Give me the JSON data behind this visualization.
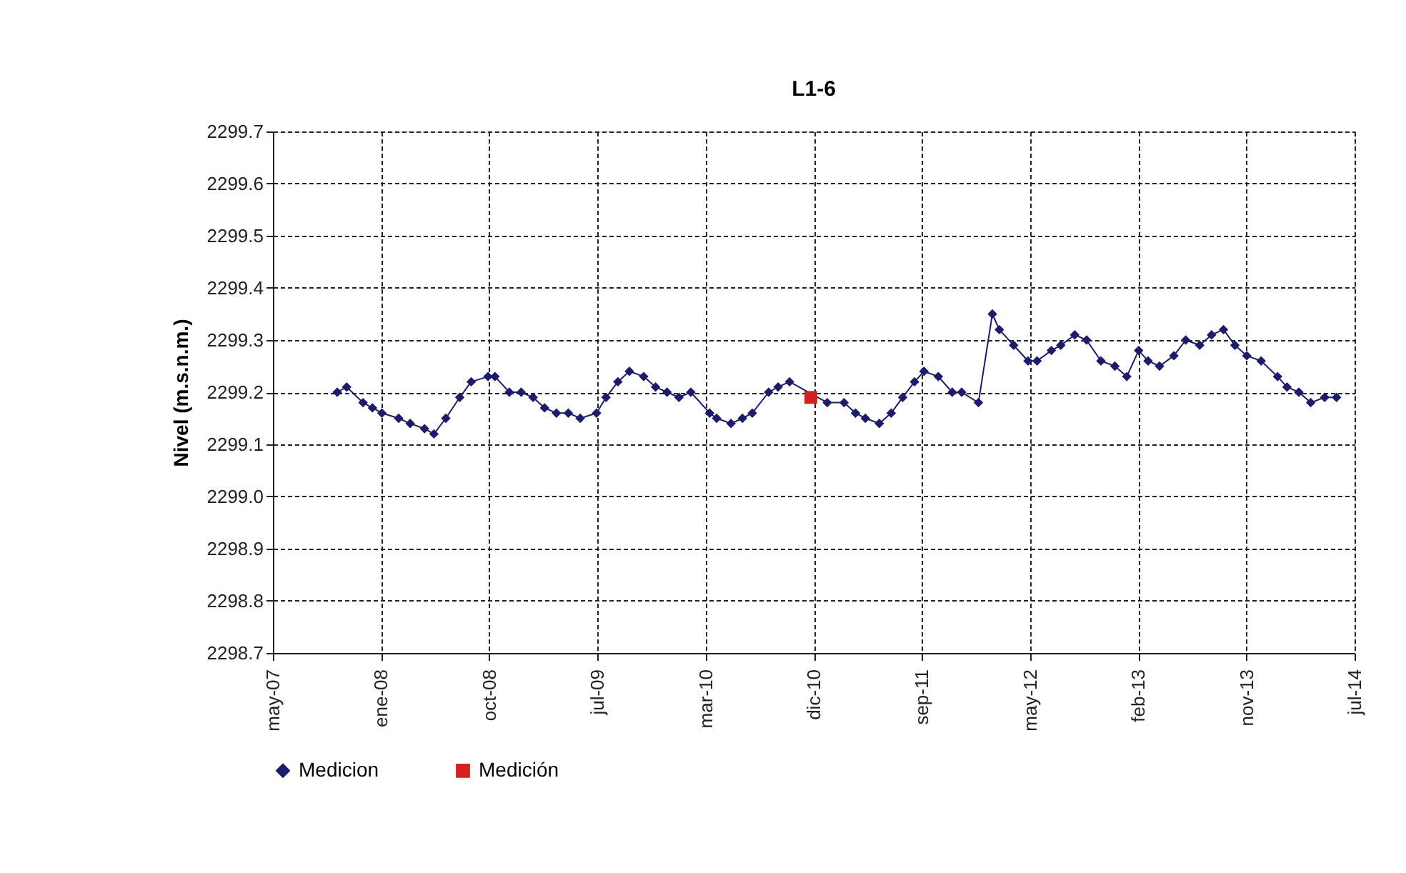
{
  "chart_data": {
    "type": "line",
    "title": "L1-6",
    "ylabel": "Nivel (m.s.n.m.)",
    "xlim": [
      "2007-05-05",
      "2014-07-27"
    ],
    "xticks": [
      {
        "value": "2007-05-05",
        "label": "may-07"
      },
      {
        "value": "2008-01-24",
        "label": "ene-08"
      },
      {
        "value": "2008-10-14",
        "label": "oct-08"
      },
      {
        "value": "2009-07-05",
        "label": "jul-09"
      },
      {
        "value": "2010-03-26",
        "label": "mar-10"
      },
      {
        "value": "2010-12-15",
        "label": "dic-10"
      },
      {
        "value": "2011-09-05",
        "label": "sep-11"
      },
      {
        "value": "2012-05-26",
        "label": "may-12"
      },
      {
        "value": "2013-02-14",
        "label": "feb-13"
      },
      {
        "value": "2013-11-05",
        "label": "nov-13"
      },
      {
        "value": "2014-07-27",
        "label": "jul-14"
      }
    ],
    "ylim": [
      2298.7,
      2299.7
    ],
    "yticks": [
      2298.7,
      2298.8,
      2298.9,
      {
        "value": 2299.0,
        "label": "2299.0"
      },
      2299.1,
      2299.2,
      2299.3,
      2299.4,
      2299.5,
      2299.6,
      2299.7
    ],
    "grid": true,
    "legend": "bottom",
    "series": [
      {
        "name": "Medicion",
        "line_style": "solid",
        "marker": "diamond",
        "color": "#1c1c6b",
        "x": [
          "2007-10-09",
          "2007-11-01",
          "2007-12-11",
          "2008-01-03",
          "2008-01-26",
          "2008-03-07",
          "2008-04-04",
          "2008-05-09",
          "2008-06-01",
          "2008-06-30",
          "2008-08-03",
          "2008-08-31",
          "2008-10-11",
          "2008-10-28",
          "2008-12-02",
          "2008-12-31",
          "2009-01-29",
          "2009-02-26",
          "2009-03-27",
          "2009-04-25",
          "2009-05-24",
          "2009-07-03",
          "2009-07-26",
          "2009-08-24",
          "2009-09-21",
          "2009-10-26",
          "2009-11-24",
          "2009-12-22",
          "2010-01-20",
          "2010-02-18",
          "2010-04-05",
          "2010-04-22",
          "2010-05-27",
          "2010-06-24",
          "2010-07-18",
          "2010-08-27",
          "2010-09-19",
          "2010-10-17",
          "2011-01-17",
          "2011-02-27",
          "2011-03-27",
          "2011-04-20",
          "2011-05-24",
          "2011-06-22",
          "2011-07-20",
          "2011-08-18",
          "2011-09-10",
          "2011-10-15",
          "2011-11-18",
          "2011-12-11",
          "2012-01-21",
          "2012-02-24",
          "2012-03-12",
          "2012-04-16",
          "2012-05-21",
          "2012-06-12",
          "2012-07-17",
          "2012-08-09",
          "2012-09-12",
          "2012-10-11",
          "2012-11-15",
          "2012-12-19",
          "2013-01-17",
          "2013-02-15",
          "2013-03-10",
          "2013-04-07",
          "2013-05-12",
          "2013-06-10",
          "2013-07-14",
          "2013-08-12",
          "2013-09-10",
          "2013-10-08",
          "2013-11-06",
          "2013-12-11",
          "2014-01-20",
          "2014-02-12",
          "2014-03-13",
          "2014-04-11",
          "2014-05-15",
          "2014-06-13"
        ],
        "values": [
          2299.2,
          2299.21,
          2299.18,
          2299.17,
          2299.16,
          2299.15,
          2299.14,
          2299.13,
          2299.12,
          2299.15,
          2299.19,
          2299.22,
          2299.23,
          2299.23,
          2299.2,
          2299.2,
          2299.19,
          2299.17,
          2299.16,
          2299.16,
          2299.15,
          2299.16,
          2299.19,
          2299.22,
          2299.24,
          2299.23,
          2299.21,
          2299.2,
          2299.19,
          2299.2,
          2299.16,
          2299.15,
          2299.14,
          2299.15,
          2299.16,
          2299.2,
          2299.21,
          2299.22,
          2299.18,
          2299.18,
          2299.16,
          2299.15,
          2299.14,
          2299.16,
          2299.19,
          2299.22,
          2299.24,
          2299.23,
          2299.2,
          2299.2,
          2299.18,
          2299.35,
          2299.32,
          2299.29,
          2299.26,
          2299.26,
          2299.28,
          2299.29,
          2299.31,
          2299.3,
          2299.26,
          2299.25,
          2299.23,
          2299.28,
          2299.26,
          2299.25,
          2299.27,
          2299.3,
          2299.29,
          2299.31,
          2299.32,
          2299.29,
          2299.27,
          2299.26,
          2299.23,
          2299.21,
          2299.2,
          2299.18,
          2299.19,
          2299.19
        ]
      },
      {
        "name": "Medición",
        "type": "scatter",
        "marker": "square",
        "color": "#d42020",
        "x": [
          "2010-12-08"
        ],
        "values": [
          2299.19
        ]
      }
    ]
  }
}
